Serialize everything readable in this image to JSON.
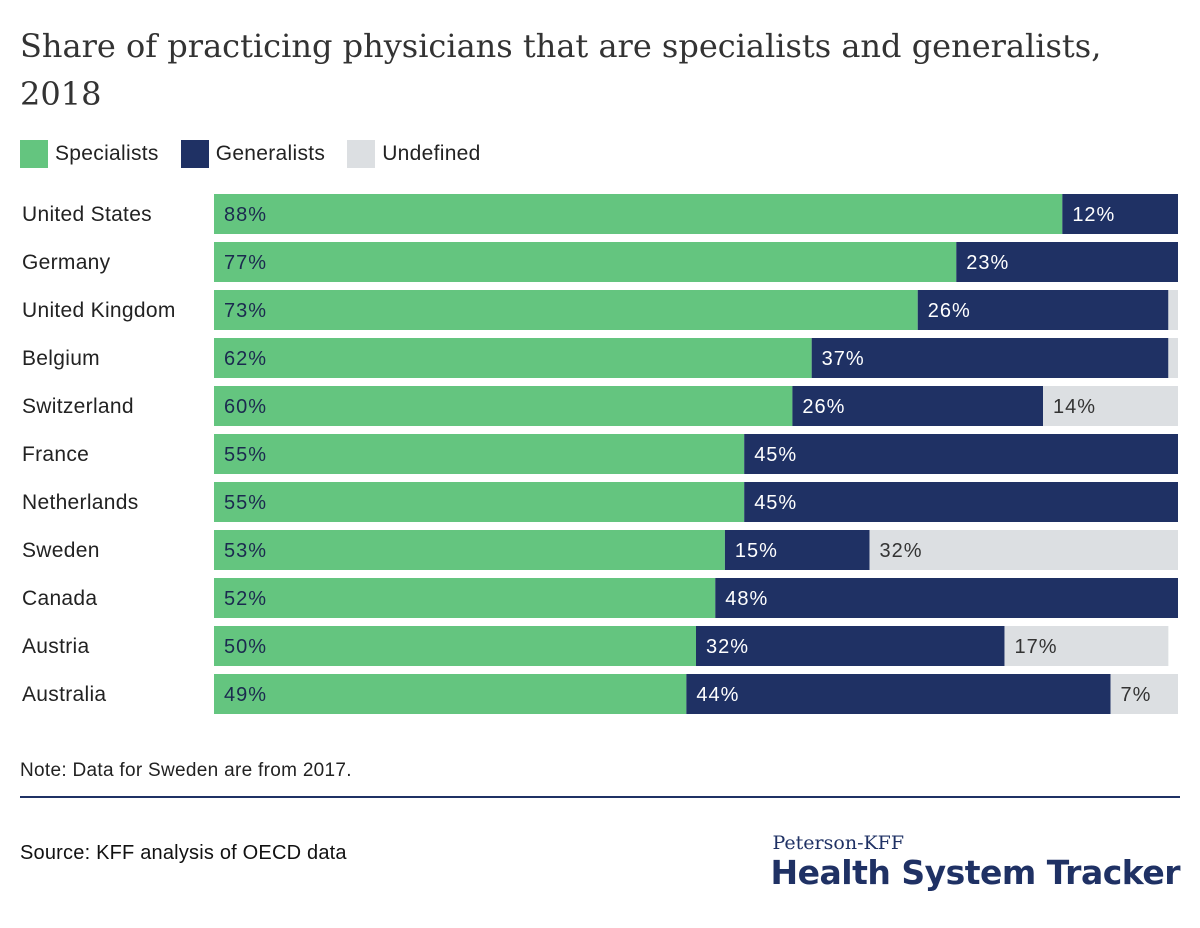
{
  "title": "Share of practicing physicians that are specialists and generalists, 2018",
  "legend": [
    {
      "label": "Specialists",
      "color": "#64c57f"
    },
    {
      "label": "Generalists",
      "color": "#1f3164"
    },
    {
      "label": "Undefined",
      "color": "#dcdfe2"
    }
  ],
  "chart_data": {
    "type": "bar",
    "orientation": "horizontal",
    "stacked": true,
    "categories": [
      "United States",
      "Germany",
      "United Kingdom",
      "Belgium",
      "Switzerland",
      "France",
      "Netherlands",
      "Sweden",
      "Canada",
      "Austria",
      "Australia"
    ],
    "series": [
      {
        "name": "Specialists",
        "color": "#64c57f",
        "values": [
          88,
          77,
          73,
          62,
          60,
          55,
          55,
          53,
          52,
          50,
          49
        ],
        "labels": [
          "88%",
          "77%",
          "73%",
          "62%",
          "60%",
          "55%",
          "55%",
          "53%",
          "52%",
          "50%",
          "49%"
        ]
      },
      {
        "name": "Generalists",
        "color": "#1f3164",
        "values": [
          12,
          23,
          26,
          37,
          26,
          45,
          45,
          15,
          48,
          32,
          44
        ],
        "labels": [
          "12%",
          "23%",
          "26%",
          "37%",
          "26%",
          "45%",
          "45%",
          "15%",
          "48%",
          "32%",
          "44%"
        ]
      },
      {
        "name": "Undefined",
        "color": "#dcdfe2",
        "values": [
          0,
          0,
          1,
          1,
          14,
          0,
          0,
          32,
          0,
          17,
          7
        ],
        "labels": [
          "",
          "",
          "",
          "",
          "14%",
          "",
          "",
          "32%",
          "",
          "17%",
          "7%"
        ]
      }
    ],
    "xlim": [
      0,
      100
    ],
    "grid": false,
    "legend_position": "top-left"
  },
  "note": "Note: Data for Sweden are from 2017.",
  "source": "Source: KFF analysis of OECD data",
  "logo": {
    "top": "Peterson-KFF",
    "main": "Health System Tracker"
  }
}
